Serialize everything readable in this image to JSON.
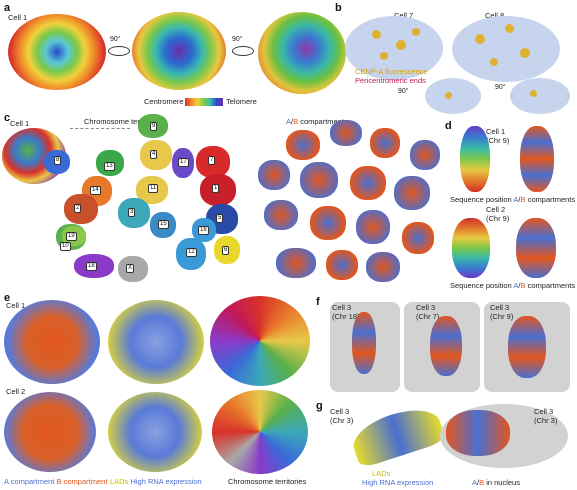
{
  "panels": {
    "a": {
      "label": "a",
      "cell_label": "Cell 1",
      "rotate_label_1": "90°",
      "rotate_label_2": "90°",
      "colorbar_left": "Centromere",
      "colorbar_right": "Telomere"
    },
    "b": {
      "label": "b",
      "cell7": "Cell 7",
      "cell8": "Cell 8",
      "legend_cenpa": "CENP-A fluorescence",
      "legend_peri": "Pericentromeric ends",
      "rotate_1": "90°",
      "rotate_2": "90°"
    },
    "c": {
      "label": "c",
      "cell_label": "Cell 1",
      "territories_title": "Chromosome territories",
      "ab_title_a": "A",
      "ab_title_sep": "/",
      "ab_title_b": "B",
      "ab_title_rest": " compartments",
      "chrom_numbers": [
        "9",
        "8",
        "13",
        "17",
        "7",
        "1",
        "14",
        "4",
        "11",
        "2",
        "5",
        "3",
        "15",
        "19",
        "10",
        "12",
        "6",
        "16",
        "18",
        "X"
      ]
    },
    "d": {
      "label": "d",
      "cell1": "Cell 1",
      "cell1_chr": "(Chr 9)",
      "cell2": "Cell 2",
      "cell2_chr": "(Chr 9)",
      "caption_seq": "Sequence position",
      "caption_a": "A",
      "caption_sep": "/",
      "caption_b": "B",
      "caption_rest": " compartments"
    },
    "e": {
      "label": "e",
      "cell1": "Cell 1",
      "cell2": "Cell 2",
      "legend_a": "A compartment",
      "legend_b": "B compartment",
      "legend_lads": "LADs",
      "legend_rna": "High RNA expression",
      "legend_territories": "Chromosome territories"
    },
    "f": {
      "label": "f",
      "cell_a": "Cell 3",
      "chr_a": "(Chr 18)",
      "cell_b": "Cell 3",
      "chr_b": "(Chr 7)",
      "cell_c": "Cell 3",
      "chr_c": "(Chr 9)"
    },
    "g": {
      "label": "g",
      "cell_a": "Cell 3",
      "chr_a": "(Chr 3)",
      "cell_b": "Cell 3",
      "chr_b": "(Chr 3)",
      "legend_lads": "LADs",
      "legend_rna": "High RNA expression",
      "legend_a": "A",
      "legend_sep": "/",
      "legend_b": "B",
      "legend_rest": " in nucleus"
    }
  },
  "colors": {
    "a_compartment": "#4a6fd0",
    "b_compartment": "#e2561e",
    "lads": "#e6dc2c",
    "rna": "#4a6fd0",
    "cenpa": "#e0a000",
    "peri": "#c2185b",
    "nucleus_grey": "#c8c8c8"
  }
}
